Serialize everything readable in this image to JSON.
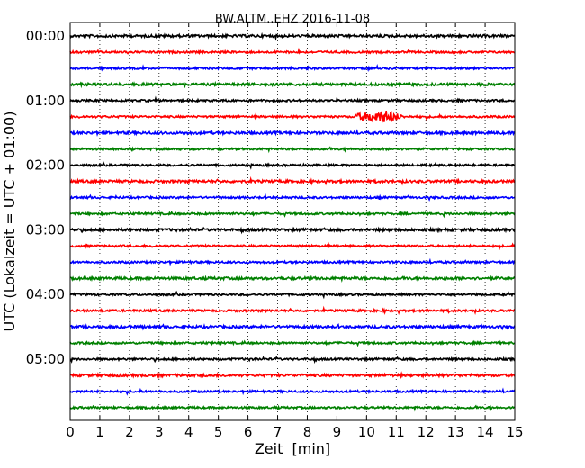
{
  "chart_data": {
    "type": "line",
    "title": "BW.ALTM..EHZ 2016-11-08",
    "xlabel": "Zeit  [min]",
    "ylabel": "UTC (Lokalzeit = UTC + 01:00)",
    "xlim": [
      0,
      15
    ],
    "x_ticks": [
      "0",
      "1",
      "2",
      "3",
      "4",
      "5",
      "6",
      "7",
      "8",
      "9",
      "10",
      "11",
      "12",
      "13",
      "14",
      "15"
    ],
    "y_ticks": [
      "00:00",
      "01:00",
      "02:00",
      "03:00",
      "04:00",
      "05:00"
    ],
    "grid": "vertical dotted lines at each minute",
    "trace_colors": [
      "#000000",
      "#ff0000",
      "#0000ff",
      "#008000"
    ],
    "trace_interval_minutes": 15,
    "traces": [
      {
        "start": "00:00",
        "color": "#000000"
      },
      {
        "start": "00:15",
        "color": "#ff0000"
      },
      {
        "start": "00:30",
        "color": "#0000ff"
      },
      {
        "start": "00:45",
        "color": "#008000"
      },
      {
        "start": "01:00",
        "color": "#000000"
      },
      {
        "start": "01:15",
        "color": "#ff0000",
        "event": {
          "start_min": 9.6,
          "peak_min": 10.7,
          "end_min": 11.4
        }
      },
      {
        "start": "01:30",
        "color": "#0000ff"
      },
      {
        "start": "01:45",
        "color": "#008000"
      },
      {
        "start": "02:00",
        "color": "#000000"
      },
      {
        "start": "02:15",
        "color": "#ff0000"
      },
      {
        "start": "02:30",
        "color": "#0000ff"
      },
      {
        "start": "02:45",
        "color": "#008000"
      },
      {
        "start": "03:00",
        "color": "#000000"
      },
      {
        "start": "03:15",
        "color": "#ff0000"
      },
      {
        "start": "03:30",
        "color": "#0000ff"
      },
      {
        "start": "03:45",
        "color": "#008000"
      },
      {
        "start": "04:00",
        "color": "#000000"
      },
      {
        "start": "04:15",
        "color": "#ff0000"
      },
      {
        "start": "04:30",
        "color": "#0000ff"
      },
      {
        "start": "04:45",
        "color": "#008000"
      },
      {
        "start": "05:00",
        "color": "#000000"
      },
      {
        "start": "05:15",
        "color": "#ff0000"
      },
      {
        "start": "05:30",
        "color": "#0000ff"
      },
      {
        "start": "05:45",
        "color": "#008000"
      }
    ]
  }
}
